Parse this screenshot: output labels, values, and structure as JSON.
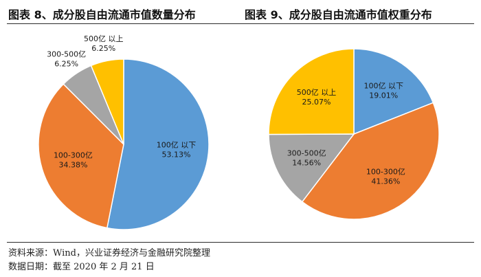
{
  "titles": {
    "left": "图表 8、成分股自由流通市值数量分布",
    "right": "图表 9、成分股自由流通市值权重分布"
  },
  "notes": {
    "source": "资料来源：Wind，兴业证券经济与金融研究院整理",
    "date": "数据日期：截至 2020 年 2 月 21 日"
  },
  "colors": {
    "100亿以下": "#5b9bd5",
    "100-300亿": "#ed7d31",
    "300-500亿": "#a5a5a5",
    "500亿以上": "#ffc000"
  },
  "chart_data": [
    {
      "type": "pie",
      "title": "图表 8、成分股自由流通市值数量分布",
      "slices": [
        {
          "label": "100亿以下",
          "label_text": "100亿 以下",
          "value": 53.13,
          "value_text": "53.13%"
        },
        {
          "label": "100-300亿",
          "label_text": "100-300亿",
          "value": 34.38,
          "value_text": "34.38%"
        },
        {
          "label": "300-500亿",
          "label_text": "300-500亿",
          "value": 6.25,
          "value_text": "6.25%"
        },
        {
          "label": "500亿以上",
          "label_text": "500亿 以上",
          "value": 6.25,
          "value_text": "6.25%"
        }
      ]
    },
    {
      "type": "pie",
      "title": "图表 9、成分股自由流通市值权重分布",
      "slices": [
        {
          "label": "100亿以下",
          "label_text": "100亿 以下",
          "value": 19.01,
          "value_text": "19.01%"
        },
        {
          "label": "100-300亿",
          "label_text": "100-300亿",
          "value": 41.36,
          "value_text": "41.36%"
        },
        {
          "label": "300-500亿",
          "label_text": "300-500亿",
          "value": 14.56,
          "value_text": "14.56%"
        },
        {
          "label": "500亿以上",
          "label_text": "500亿 以上",
          "value": 25.07,
          "value_text": "25.07%"
        }
      ]
    }
  ]
}
